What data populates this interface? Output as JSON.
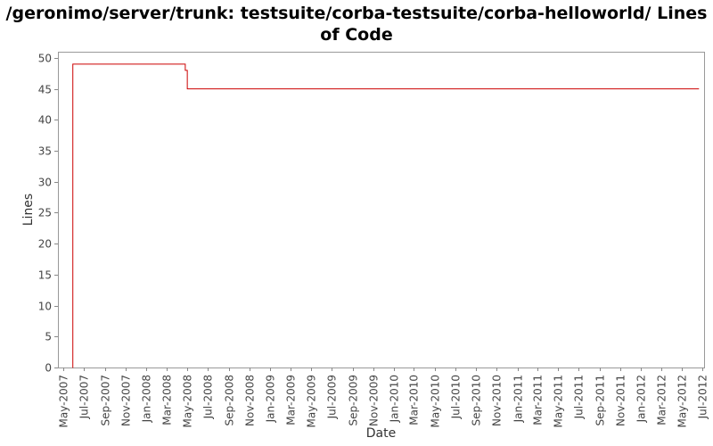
{
  "chart_data": {
    "type": "line",
    "title": "/geronimo/server/trunk: testsuite/corba-testsuite/corba-helloworld/ Lines of Code",
    "xlabel": "Date",
    "ylabel": "Lines",
    "ylim": [
      0,
      51
    ],
    "yticks": [
      0,
      5,
      10,
      15,
      20,
      25,
      30,
      35,
      40,
      45,
      50
    ],
    "xlim": [
      "2007-04-15",
      "2012-07-05"
    ],
    "xticks": [
      {
        "date": "2007-05-01",
        "label": "May-2007"
      },
      {
        "date": "2007-07-01",
        "label": "Jul-2007"
      },
      {
        "date": "2007-09-01",
        "label": "Sep-2007"
      },
      {
        "date": "2007-11-01",
        "label": "Nov-2007"
      },
      {
        "date": "2008-01-01",
        "label": "Jan-2008"
      },
      {
        "date": "2008-03-01",
        "label": "Mar-2008"
      },
      {
        "date": "2008-05-01",
        "label": "May-2008"
      },
      {
        "date": "2008-07-01",
        "label": "Jul-2008"
      },
      {
        "date": "2008-09-01",
        "label": "Sep-2008"
      },
      {
        "date": "2008-11-01",
        "label": "Nov-2008"
      },
      {
        "date": "2009-01-01",
        "label": "Jan-2009"
      },
      {
        "date": "2009-03-01",
        "label": "Mar-2009"
      },
      {
        "date": "2009-05-01",
        "label": "May-2009"
      },
      {
        "date": "2009-07-01",
        "label": "Jul-2009"
      },
      {
        "date": "2009-09-01",
        "label": "Sep-2009"
      },
      {
        "date": "2009-11-01",
        "label": "Nov-2009"
      },
      {
        "date": "2010-01-01",
        "label": "Jan-2010"
      },
      {
        "date": "2010-03-01",
        "label": "Mar-2010"
      },
      {
        "date": "2010-05-01",
        "label": "May-2010"
      },
      {
        "date": "2010-07-01",
        "label": "Jul-2010"
      },
      {
        "date": "2010-09-01",
        "label": "Sep-2010"
      },
      {
        "date": "2010-11-01",
        "label": "Nov-2010"
      },
      {
        "date": "2011-01-01",
        "label": "Jan-2011"
      },
      {
        "date": "2011-03-01",
        "label": "Mar-2011"
      },
      {
        "date": "2011-05-01",
        "label": "May-2011"
      },
      {
        "date": "2011-07-01",
        "label": "Jul-2011"
      },
      {
        "date": "2011-09-01",
        "label": "Sep-2011"
      },
      {
        "date": "2011-11-01",
        "label": "Nov-2011"
      },
      {
        "date": "2012-01-01",
        "label": "Jan-2012"
      },
      {
        "date": "2012-03-01",
        "label": "Mar-2012"
      },
      {
        "date": "2012-05-01",
        "label": "May-2012"
      },
      {
        "date": "2012-07-01",
        "label": "Jul-2012"
      }
    ],
    "grid": false,
    "series": [
      {
        "color": "#cc0000",
        "step": true,
        "points": [
          {
            "x": "2007-05-28",
            "y": 0
          },
          {
            "x": "2007-05-29",
            "y": 49
          },
          {
            "x": "2008-04-25",
            "y": 48
          },
          {
            "x": "2008-05-01",
            "y": 45
          },
          {
            "x": "2012-06-20",
            "y": 45
          }
        ]
      }
    ]
  }
}
